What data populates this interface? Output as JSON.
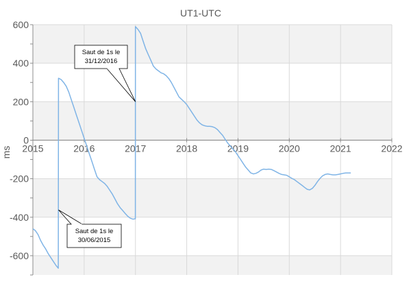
{
  "chart_data": {
    "type": "line",
    "title": "UT1-UTC",
    "xlabel": "",
    "ylabel": "ms",
    "xlim": [
      2015,
      2022
    ],
    "ylim": [
      -700,
      600
    ],
    "x_ticks": [
      "2015",
      "2016",
      "2017",
      "2018",
      "2019",
      "2020",
      "2021",
      "2022"
    ],
    "y_ticks": [
      "600",
      "400",
      "200",
      "0",
      "-200",
      "-400",
      "-600"
    ],
    "grid": true,
    "legend": "none",
    "series": [
      {
        "color": "#7fb4e6",
        "x": [
          2015.0,
          2015.05,
          2015.1,
          2015.15,
          2015.2,
          2015.25,
          2015.3,
          2015.35,
          2015.4,
          2015.45,
          2015.496,
          2015.5,
          2015.55,
          2015.6,
          2015.65,
          2015.7,
          2015.75,
          2015.8,
          2015.85,
          2015.9,
          2015.95,
          2016.0,
          2016.05,
          2016.1,
          2016.15,
          2016.2,
          2016.25,
          2016.3,
          2016.35,
          2016.4,
          2016.45,
          2016.5,
          2016.55,
          2016.6,
          2016.65,
          2016.7,
          2016.75,
          2016.8,
          2016.85,
          2016.9,
          2016.95,
          2016.998,
          2017.0,
          2017.05,
          2017.1,
          2017.15,
          2017.2,
          2017.25,
          2017.3,
          2017.35,
          2017.4,
          2017.45,
          2017.5,
          2017.55,
          2017.6,
          2017.65,
          2017.7,
          2017.75,
          2017.8,
          2017.85,
          2017.9,
          2017.95,
          2018.0,
          2018.05,
          2018.1,
          2018.15,
          2018.2,
          2018.25,
          2018.3,
          2018.35,
          2018.4,
          2018.45,
          2018.5,
          2018.55,
          2018.6,
          2018.65,
          2018.7,
          2018.75,
          2018.8,
          2018.85,
          2018.9,
          2018.95,
          2019.0,
          2019.05,
          2019.1,
          2019.15,
          2019.2,
          2019.25,
          2019.3,
          2019.35,
          2019.4,
          2019.45,
          2019.5,
          2019.55,
          2019.6,
          2019.65,
          2019.7,
          2019.75,
          2019.8,
          2019.85,
          2019.9,
          2019.95,
          2020.0,
          2020.05,
          2020.1,
          2020.15,
          2020.2,
          2020.25,
          2020.3,
          2020.35,
          2020.4,
          2020.45,
          2020.5,
          2020.55,
          2020.6,
          2020.65,
          2020.7,
          2020.75,
          2020.8,
          2020.85,
          2020.9,
          2020.95,
          2021.0,
          2021.05,
          2021.1,
          2021.15,
          2021.2
        ],
        "values": [
          -460,
          -470,
          -490,
          -520,
          -545,
          -565,
          -590,
          -610,
          -630,
          -650,
          -665,
          322,
          315,
          300,
          280,
          250,
          210,
          170,
          130,
          90,
          50,
          10,
          -30,
          -70,
          -110,
          -150,
          -190,
          -205,
          -215,
          -225,
          -240,
          -260,
          -280,
          -305,
          -330,
          -350,
          -365,
          -380,
          -395,
          -405,
          -410,
          -408,
          590,
          575,
          555,
          515,
          475,
          445,
          415,
          385,
          370,
          360,
          350,
          345,
          335,
          320,
          300,
          275,
          250,
          225,
          212,
          200,
          185,
          165,
          145,
          125,
          105,
          90,
          80,
          75,
          72,
          72,
          70,
          65,
          55,
          40,
          25,
          5,
          -15,
          -30,
          -45,
          -60,
          -80,
          -100,
          -120,
          -140,
          -155,
          -170,
          -175,
          -172,
          -165,
          -155,
          -150,
          -152,
          -150,
          -152,
          -158,
          -165,
          -172,
          -178,
          -180,
          -182,
          -190,
          -198,
          -205,
          -215,
          -225,
          -235,
          -245,
          -255,
          -258,
          -250,
          -235,
          -215,
          -198,
          -185,
          -178,
          -175,
          -178,
          -180,
          -180,
          -178,
          -175,
          -172,
          -170,
          -170,
          -170
        ]
      }
    ],
    "annotations": [
      {
        "lines": [
          "Saut de 1s le",
          "31/12/2016"
        ],
        "x": 2017.0,
        "y": 200
      },
      {
        "lines": [
          "Saut de 1s le",
          "30/06/2015"
        ],
        "x": 2015.5,
        "y": -362
      }
    ]
  }
}
